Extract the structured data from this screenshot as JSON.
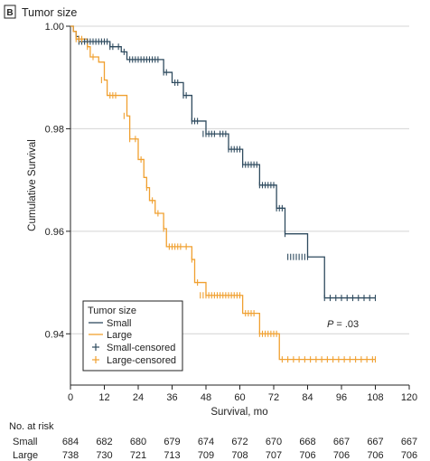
{
  "panel": {
    "letter": "B",
    "title": "Tumor size"
  },
  "chart_data": {
    "type": "line",
    "title": "Tumor size",
    "xlabel": "Survival, mo",
    "ylabel": "Cumulative Survival",
    "xlim": [
      0,
      120
    ],
    "ylim": [
      0.93,
      1.0
    ],
    "xticks": [
      0,
      12,
      24,
      36,
      48,
      60,
      72,
      84,
      96,
      108,
      120
    ],
    "yticks": [
      0.94,
      0.96,
      0.98,
      1.0
    ],
    "ytick_labels": [
      "0.94",
      "0.96",
      "0.98",
      "1.00"
    ],
    "grid": "horizontal",
    "annotation": {
      "prefix": "P",
      "text": " = .03",
      "x": 97,
      "y": 0.9425
    },
    "legend": {
      "title": "Tumor size",
      "placement": "bottom-left",
      "entries": [
        "Small",
        "Large",
        "Small-censored",
        "Large-censored"
      ]
    },
    "colors": {
      "Small": "#2f4b5f",
      "Large": "#f0a030"
    },
    "series": [
      {
        "name": "Small",
        "step": true,
        "x": [
          0,
          1,
          2,
          3,
          13,
          14,
          18,
          20,
          32,
          33,
          35,
          36,
          39,
          40,
          42,
          43,
          47,
          48,
          50,
          54,
          56,
          60,
          61,
          66,
          67,
          72,
          73,
          75,
          76,
          84,
          90,
          108
        ],
        "y": [
          1.0,
          0.999,
          0.998,
          0.997,
          0.997,
          0.996,
          0.995,
          0.9935,
          0.9935,
          0.991,
          0.991,
          0.989,
          0.989,
          0.9865,
          0.9865,
          0.9815,
          0.9815,
          0.979,
          0.979,
          0.979,
          0.976,
          0.976,
          0.973,
          0.973,
          0.969,
          0.969,
          0.9645,
          0.9645,
          0.9595,
          0.955,
          0.947,
          0.947
        ]
      },
      {
        "name": "Large",
        "step": true,
        "x": [
          0,
          1,
          2,
          4,
          6,
          7,
          10,
          12,
          13,
          20,
          21,
          24,
          26,
          27,
          28,
          30,
          33,
          34,
          38,
          40,
          43,
          44,
          48,
          60,
          61,
          66,
          67,
          74,
          108
        ],
        "y": [
          1.0,
          0.999,
          0.9975,
          0.9975,
          0.996,
          0.994,
          0.993,
          0.9895,
          0.9865,
          0.9825,
          0.978,
          0.974,
          0.9705,
          0.9685,
          0.966,
          0.9635,
          0.9605,
          0.957,
          0.957,
          0.957,
          0.9545,
          0.95,
          0.9475,
          0.9475,
          0.944,
          0.944,
          0.94,
          0.935,
          0.935
        ]
      },
      {
        "name": "Small-censored",
        "marker": "+",
        "x": [
          3,
          4,
          5,
          6,
          7,
          8,
          9,
          10,
          11,
          12,
          13,
          14,
          15,
          17,
          19,
          21,
          22,
          23,
          24,
          25,
          26,
          27,
          28,
          29,
          30,
          31,
          33,
          34,
          37,
          38,
          40,
          41,
          43,
          44,
          45,
          47,
          48,
          49,
          50,
          51,
          53,
          54,
          55,
          56,
          57,
          58,
          59,
          60,
          61,
          62,
          63,
          64,
          65,
          66,
          67,
          68,
          69,
          70,
          71,
          72,
          73,
          74,
          75,
          76,
          77,
          78,
          79,
          80,
          81,
          82,
          83,
          84,
          90,
          92,
          94,
          96,
          98,
          100,
          102,
          104,
          106,
          108
        ],
        "y": [
          0.997,
          0.997,
          0.997,
          0.997,
          0.997,
          0.997,
          0.997,
          0.997,
          0.997,
          0.997,
          0.997,
          0.996,
          0.996,
          0.996,
          0.995,
          0.9935,
          0.9935,
          0.9935,
          0.9935,
          0.9935,
          0.9935,
          0.9935,
          0.9935,
          0.9935,
          0.9935,
          0.9935,
          0.991,
          0.991,
          0.989,
          0.989,
          0.9865,
          0.9865,
          0.9815,
          0.9815,
          0.9815,
          0.979,
          0.979,
          0.979,
          0.979,
          0.979,
          0.979,
          0.979,
          0.979,
          0.976,
          0.976,
          0.976,
          0.976,
          0.976,
          0.973,
          0.973,
          0.973,
          0.973,
          0.973,
          0.973,
          0.969,
          0.969,
          0.969,
          0.969,
          0.969,
          0.969,
          0.9645,
          0.9645,
          0.9645,
          0.9595,
          0.955,
          0.955,
          0.955,
          0.955,
          0.955,
          0.955,
          0.955,
          0.955,
          0.947,
          0.947,
          0.947,
          0.947,
          0.947,
          0.947,
          0.947,
          0.947,
          0.947,
          0.947
        ]
      },
      {
        "name": "Large-censored",
        "marker": "+",
        "x": [
          2,
          3,
          4,
          6,
          8,
          11,
          14,
          15,
          16,
          19,
          21,
          23,
          25,
          27,
          29,
          31,
          33,
          35,
          36,
          37,
          38,
          39,
          41,
          43,
          45,
          46,
          47,
          48,
          49,
          50,
          51,
          52,
          53,
          54,
          55,
          56,
          57,
          58,
          59,
          60,
          62,
          63,
          64,
          65,
          67,
          68,
          69,
          70,
          71,
          72,
          73,
          75,
          77,
          79,
          81,
          83,
          85,
          87,
          89,
          91,
          93,
          95,
          97,
          99,
          101,
          103,
          105,
          107,
          108
        ],
        "y": [
          0.9975,
          0.9975,
          0.9975,
          0.996,
          0.994,
          0.9895,
          0.9865,
          0.9865,
          0.9865,
          0.9825,
          0.978,
          0.978,
          0.974,
          0.9685,
          0.966,
          0.9635,
          0.9605,
          0.957,
          0.957,
          0.957,
          0.957,
          0.957,
          0.957,
          0.9545,
          0.95,
          0.9475,
          0.9475,
          0.9475,
          0.9475,
          0.9475,
          0.9475,
          0.9475,
          0.9475,
          0.9475,
          0.9475,
          0.9475,
          0.9475,
          0.9475,
          0.9475,
          0.9475,
          0.944,
          0.944,
          0.944,
          0.944,
          0.94,
          0.94,
          0.94,
          0.94,
          0.94,
          0.94,
          0.94,
          0.935,
          0.935,
          0.935,
          0.935,
          0.935,
          0.935,
          0.935,
          0.935,
          0.935,
          0.935,
          0.935,
          0.935,
          0.935,
          0.935,
          0.935,
          0.935,
          0.935,
          0.935
        ]
      }
    ],
    "risk_table": {
      "title": "No. at risk",
      "times": [
        0,
        12,
        24,
        36,
        48,
        60,
        72,
        84,
        96,
        108,
        120
      ],
      "rows": [
        {
          "label": "Small",
          "values": [
            "684",
            "682",
            "680",
            "679",
            "674",
            "672",
            "670",
            "668",
            "667",
            "667",
            "667"
          ]
        },
        {
          "label": "Large",
          "values": [
            "738",
            "730",
            "721",
            "713",
            "709",
            "708",
            "707",
            "706",
            "706",
            "706",
            "706"
          ]
        }
      ]
    }
  }
}
